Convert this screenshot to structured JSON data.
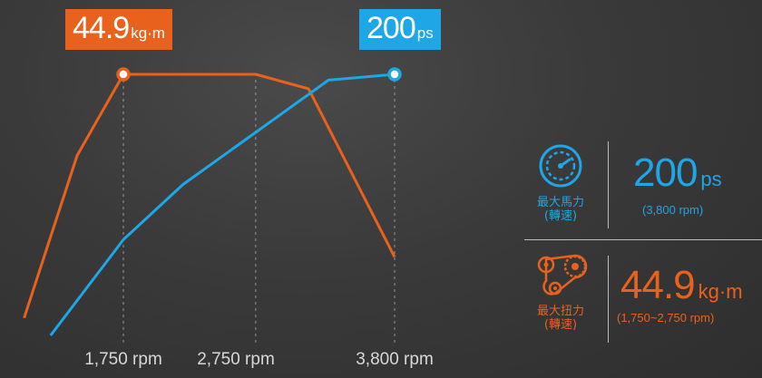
{
  "chart_data": {
    "type": "line",
    "title": "",
    "xlabel": "",
    "ylabel": "",
    "x_ticks": [
      "1,750 rpm",
      "2,750 rpm",
      "3,800 rpm"
    ],
    "series": [
      {
        "key": "torque",
        "color": "#e8621e",
        "x": [
          1000,
          1400,
          1750,
          2750,
          3150,
          3800
        ],
        "values": [
          0.06,
          0.62,
          0.9,
          0.9,
          0.85,
          0.27
        ]
      },
      {
        "key": "power",
        "color": "#1ea6e6",
        "x": [
          1200,
          1750,
          2200,
          2750,
          3300,
          3800
        ],
        "values": [
          0.0,
          0.33,
          0.52,
          0.7,
          0.88,
          0.9
        ]
      }
    ],
    "peaks": {
      "torque": {
        "value": "44.9",
        "unit": "kg·m"
      },
      "power": {
        "value": "200",
        "unit": "ps"
      }
    }
  },
  "spec_panel": {
    "power": {
      "label_line1": "最大馬力",
      "label_line2": "(轉速)",
      "value": "200",
      "unit": "ps",
      "sub": "(3,800 rpm)",
      "icon": "speedometer-icon"
    },
    "torque": {
      "label_line1": "最大扭力",
      "label_line2": "(轉速)",
      "value": "44.9",
      "unit": "kg·m",
      "sub": "(1,750~2,750 rpm)",
      "icon": "gear-belt-icon"
    }
  },
  "colors": {
    "torque": "#e8621e",
    "power": "#1ea6e6"
  }
}
